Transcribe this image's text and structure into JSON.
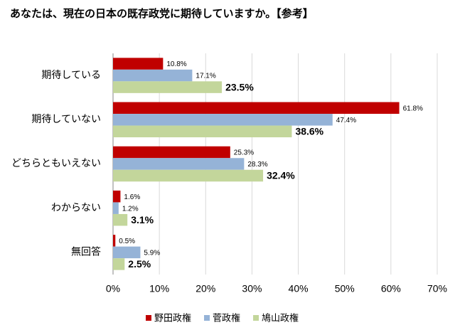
{
  "chart_data": {
    "type": "bar",
    "orientation": "horizontal",
    "title": "あなたは、現在の日本の既存政党に期待していますか。【参考】",
    "categories": [
      "期待している",
      "期待していない",
      "どちらともいえない",
      "わからない",
      "無回答"
    ],
    "series": [
      {
        "name": "野田政権",
        "color": "#c00000",
        "values": [
          10.8,
          61.8,
          25.3,
          1.6,
          0.5
        ],
        "value_labels": [
          "10.8%",
          "61.8%",
          "25.3%",
          "1.6%",
          "0.5%"
        ]
      },
      {
        "name": "菅政権",
        "color": "#95b3d7",
        "values": [
          17.1,
          47.4,
          28.3,
          1.2,
          5.9
        ],
        "value_labels": [
          "17.1%",
          "47.4%",
          "28.3%",
          "1.2%",
          "5.9%"
        ]
      },
      {
        "name": "鳩山政権",
        "color": "#c3d69b",
        "values": [
          23.5,
          38.6,
          32.4,
          3.1,
          2.5
        ],
        "value_labels": [
          "23.5%",
          "38.6%",
          "32.4%",
          "3.1%",
          "2.5%"
        ]
      }
    ],
    "xlim": [
      0,
      70
    ],
    "xticks": [
      {
        "value": 0,
        "label": "0%"
      },
      {
        "value": 10,
        "label": "10%"
      },
      {
        "value": 20,
        "label": "20%"
      },
      {
        "value": 30,
        "label": "30%"
      },
      {
        "value": 40,
        "label": "40%"
      },
      {
        "value": 50,
        "label": "50%"
      },
      {
        "value": 60,
        "label": "60%"
      },
      {
        "value": 70,
        "label": "70%"
      }
    ],
    "grid": true,
    "legend": "bottom"
  }
}
